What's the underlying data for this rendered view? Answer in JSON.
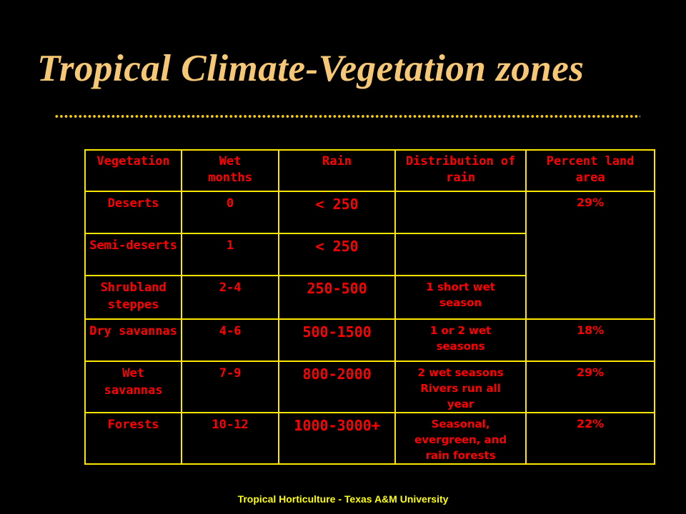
{
  "title": "Tropical Climate-Vegetation zones",
  "footer": "Tropical Horticulture - Texas A&M University",
  "colors": {
    "title": "#f6c774",
    "dots": "#ffd200",
    "border": "#ffe600",
    "text": "#ff0000",
    "footer": "#ffff00"
  },
  "table": {
    "headers": [
      "Vegetation",
      "Wet months",
      "Rain",
      "Distribution of rain",
      "Percent land area"
    ],
    "rows": [
      {
        "vegetation": "Deserts",
        "wet_months": "0",
        "rain": "< 250",
        "distribution": "",
        "percent": "29%"
      },
      {
        "vegetation": "Semi-deserts",
        "wet_months": "1",
        "rain": "< 250",
        "distribution": "",
        "percent": ""
      },
      {
        "vegetation": "Shrubland steppes",
        "wet_months": "2-4",
        "rain": "250-500",
        "distribution": "1 short wet season",
        "percent": ""
      },
      {
        "vegetation": "Dry savannas",
        "wet_months": "4-6",
        "rain": "500-1500",
        "distribution": "1 or 2 wet seasons",
        "percent": "18%"
      },
      {
        "vegetation": "Wet savannas",
        "wet_months": "7-9",
        "rain": "800-2000",
        "distribution": "2 wet seasons Rivers run all year",
        "percent": "29%"
      },
      {
        "vegetation": "Forests",
        "wet_months": "10-12",
        "rain": "1000-3000+",
        "distribution": "Seasonal, evergreen, and rain forests",
        "percent": "22%"
      }
    ]
  }
}
